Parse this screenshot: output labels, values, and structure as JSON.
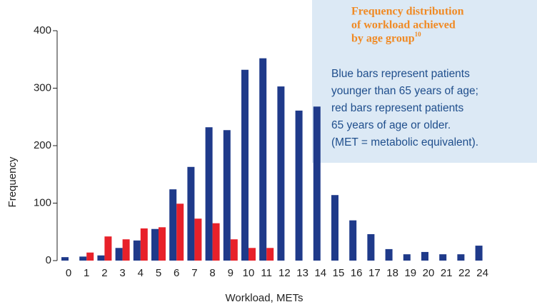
{
  "chart_data": {
    "type": "bar",
    "categories": [
      "0",
      "1",
      "2",
      "3",
      "4",
      "5",
      "6",
      "7",
      "8",
      "9",
      "10",
      "11",
      "12",
      "13",
      "14",
      "15",
      "16",
      "17",
      "18",
      "19",
      "20",
      "21",
      "22",
      "24"
    ],
    "series": [
      {
        "color": "#1f3a8a",
        "values": [
          6,
          7,
          9,
          22,
          35,
          55,
          124,
          163,
          232,
          227,
          332,
          352,
          303,
          261,
          268,
          114,
          70,
          46,
          20,
          11,
          15,
          11,
          11,
          26
        ]
      },
      {
        "color": "#e8212a",
        "values": [
          null,
          14,
          42,
          37,
          56,
          58,
          99,
          73,
          65,
          37,
          22,
          22,
          null,
          null,
          null,
          null,
          null,
          null,
          null,
          null,
          null,
          null,
          null,
          null
        ]
      }
    ],
    "ylim": [
      0,
      400
    ],
    "yticks": [
      0,
      100,
      200,
      300,
      400
    ],
    "x_label": "Workload, METs",
    "y_label": "Frequency",
    "annotation": {
      "title_lines": [
        "Frequency distribution",
        "of workload achieved",
        "by age group"
      ],
      "title_sup": "10",
      "lines": [
        "Blue bars represent patients",
        "younger than 65 years of age;",
        "red bars represent patients",
        "65 years of age or older.",
        "(MET = metabolic equivalent)."
      ]
    }
  }
}
